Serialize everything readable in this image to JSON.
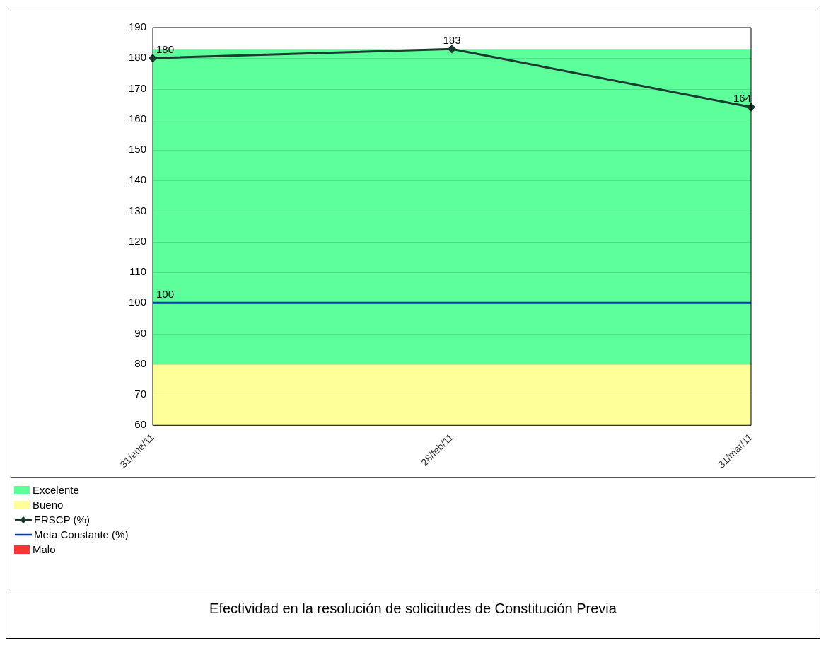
{
  "chart_data": {
    "type": "line",
    "title": "Efectividad en la resolución de solicitudes de Constitución Previa",
    "categories": [
      "31/ene/11",
      "28/feb/11",
      "31/mar/11"
    ],
    "series": [
      {
        "name": "ERSCP (%)",
        "color": "#1e3b32",
        "values": [
          180,
          183,
          164
        ],
        "marker": "diamond",
        "value_labels": [
          "180",
          "183",
          "164"
        ]
      },
      {
        "name": "Meta Constante (%)",
        "color": "#0033cc",
        "values": [
          100,
          100,
          100
        ],
        "marker": "none",
        "value_labels": [
          "100",
          null,
          null
        ]
      },
      {
        "name": "Malo",
        "type": "area",
        "color": "#ff3333",
        "values": [
          null,
          null,
          null
        ]
      }
    ],
    "bands": [
      {
        "axis": "y",
        "from": 80,
        "to": 183,
        "label": "Excelente",
        "color": "#5cff9a"
      },
      {
        "axis": "y",
        "from": 60,
        "to": 80,
        "label": "Bueno",
        "color": "#ffff99"
      }
    ],
    "ylim": [
      60,
      190
    ],
    "yticks": [
      60,
      70,
      80,
      90,
      100,
      110,
      120,
      130,
      140,
      150,
      160,
      170,
      180,
      190
    ],
    "grid": "y",
    "legend": "bottom",
    "line_style": "solid"
  }
}
